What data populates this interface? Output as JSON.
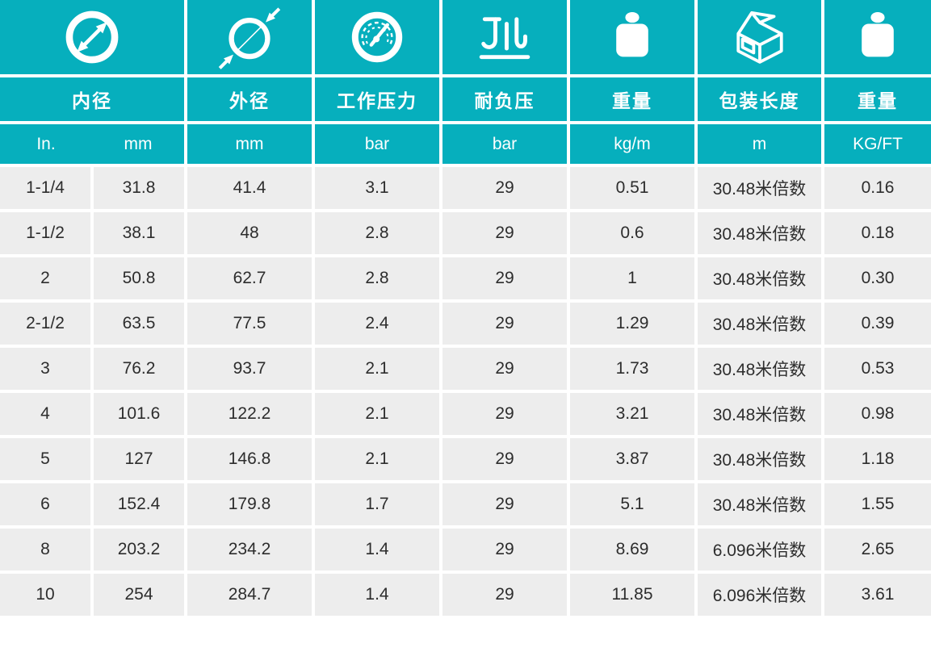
{
  "colors": {
    "teal": "#06AFBD",
    "row_bg": "#EDEDED",
    "text_dark": "#2D2D2D",
    "icon_white": "#FFFFFF"
  },
  "table": {
    "icons": [
      "inner-diameter-icon",
      "outer-diameter-icon",
      "pressure-gauge-icon",
      "vacuum-suction-icon",
      "weight-icon",
      "package-box-icon",
      "weight-icon"
    ],
    "headers": [
      "内径",
      "外径",
      "工作压力",
      "耐负压",
      "重量",
      "包装长度",
      "重量"
    ],
    "units": [
      "In.",
      "mm",
      "mm",
      "bar",
      "bar",
      "kg/m",
      "m",
      "KG/FT"
    ],
    "rows": [
      [
        "1-1/4",
        "31.8",
        "41.4",
        "3.1",
        "29",
        "0.51",
        "30.48米倍数",
        "0.16"
      ],
      [
        "1-1/2",
        "38.1",
        "48",
        "2.8",
        "29",
        "0.6",
        "30.48米倍数",
        "0.18"
      ],
      [
        "2",
        "50.8",
        "62.7",
        "2.8",
        "29",
        "1",
        "30.48米倍数",
        "0.30"
      ],
      [
        "2-1/2",
        "63.5",
        "77.5",
        "2.4",
        "29",
        "1.29",
        "30.48米倍数",
        "0.39"
      ],
      [
        "3",
        "76.2",
        "93.7",
        "2.1",
        "29",
        "1.73",
        "30.48米倍数",
        "0.53"
      ],
      [
        "4",
        "101.6",
        "122.2",
        "2.1",
        "29",
        "3.21",
        "30.48米倍数",
        "0.98"
      ],
      [
        "5",
        "127",
        "146.8",
        "2.1",
        "29",
        "3.87",
        "30.48米倍数",
        "1.18"
      ],
      [
        "6",
        "152.4",
        "179.8",
        "1.7",
        "29",
        "5.1",
        "30.48米倍数",
        "1.55"
      ],
      [
        "8",
        "203.2",
        "234.2",
        "1.4",
        "29",
        "8.69",
        "6.096米倍数",
        "2.65"
      ],
      [
        "10",
        "254",
        "284.7",
        "1.4",
        "29",
        "11.85",
        "6.096米倍数",
        "3.61"
      ]
    ]
  }
}
